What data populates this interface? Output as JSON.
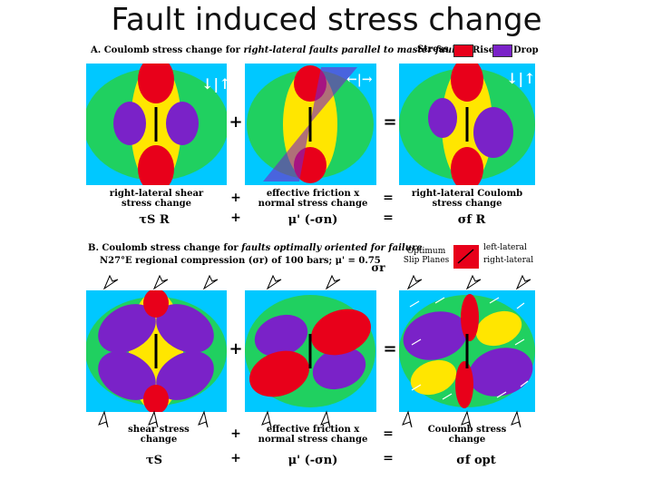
{
  "title": "Fault induced stress change",
  "section_a": {
    "heading_prefix": "A. Coulomb stress change for ",
    "heading_italic": "right-lateral faults parallel to master fault",
    "legend": {
      "stress_label": "Stress",
      "rise_label": "Rise",
      "drop_label": "Drop",
      "rise_color": "#e8001a",
      "drop_color": "#7a22c8"
    },
    "captions": [
      "right-lateral shear stress change",
      "effective friction x normal stress change",
      "right-lateral Coulomb stress change"
    ],
    "symbols": [
      "τS R",
      "μ' (-σn)",
      "σf R"
    ],
    "ops": [
      "+",
      "=",
      "+",
      "=",
      "+",
      "="
    ]
  },
  "section_b": {
    "heading_prefix": "B. Coulomb stress change for ",
    "heading_italic": "faults optimally oriented for failure",
    "heading_line2": "N27°E regional compression (σr) of 100 bars; μ' = 0.75",
    "sigma_r": "σr",
    "legend": {
      "optimum_label": "Optimum Slip Planes",
      "left_lateral": "left-lateral",
      "right_lateral": "right-lateral"
    },
    "captions": [
      "shear stress change",
      "effective friction x normal stress change",
      "Coulomb stress change"
    ],
    "symbols": [
      "τS",
      "μ' (-σn)",
      "σf opt"
    ],
    "ops": [
      "+",
      "=",
      "+",
      "=",
      "+",
      "="
    ]
  },
  "colors": {
    "background": "#00c8ff",
    "green": "#20d060",
    "yellow": "#ffe600",
    "red": "#e8001a",
    "purple": "#7a22c8"
  }
}
